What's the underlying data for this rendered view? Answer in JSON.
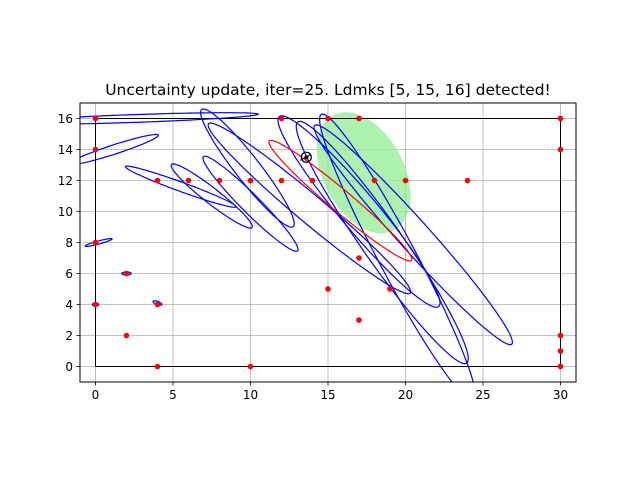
{
  "chart_data": {
    "type": "scatter",
    "title": "Uncertainty update, iter=25. Ldmks [5, 15, 16] detected!",
    "xlabel": "",
    "ylabel": "",
    "xlim": [
      -1,
      31
    ],
    "ylim": [
      -1,
      17
    ],
    "xticks": [
      0,
      5,
      10,
      15,
      20,
      25,
      30
    ],
    "yticks": [
      0,
      2,
      4,
      6,
      8,
      10,
      12,
      14,
      16
    ],
    "grid": true,
    "colors": {
      "landmark": "#ff0000",
      "ellipse": "#0000ff",
      "robot_cov": "#90ee90",
      "pose_ellipse": "#ff0000",
      "path": "#000000",
      "walls": "#000000",
      "grid": "#b0b0b0"
    },
    "walls": [
      [
        0,
        0
      ],
      [
        30,
        0
      ],
      [
        30,
        16
      ],
      [
        0,
        16
      ],
      [
        0,
        0
      ]
    ],
    "landmarks": [
      [
        0,
        4
      ],
      [
        0,
        8
      ],
      [
        0,
        14
      ],
      [
        0,
        16
      ],
      [
        2,
        2
      ],
      [
        2,
        6
      ],
      [
        4,
        0
      ],
      [
        4,
        4
      ],
      [
        4,
        12
      ],
      [
        6,
        12
      ],
      [
        8,
        12
      ],
      [
        10,
        0
      ],
      [
        10,
        12
      ],
      [
        12,
        12
      ],
      [
        12,
        16
      ],
      [
        14,
        12
      ],
      [
        15,
        16
      ],
      [
        15,
        5
      ],
      [
        17,
        16
      ],
      [
        17,
        7
      ],
      [
        17,
        3
      ],
      [
        18,
        12
      ],
      [
        19,
        5
      ],
      [
        20,
        12
      ],
      [
        24,
        12
      ],
      [
        30,
        0
      ],
      [
        30,
        1
      ],
      [
        30,
        2
      ],
      [
        30,
        14
      ],
      [
        30,
        16
      ]
    ],
    "landmark_ellipses": [
      {
        "cx": 0.0,
        "cy": 4.0,
        "rx": 0.2,
        "ry": 0.1,
        "angle": 0
      },
      {
        "cx": 0.2,
        "cy": 8.0,
        "rx": 0.9,
        "ry": 0.1,
        "angle": 15
      },
      {
        "cx": 2.0,
        "cy": 6.0,
        "rx": 0.3,
        "ry": 0.1,
        "angle": 0
      },
      {
        "cx": 4.0,
        "cy": 4.1,
        "rx": 0.3,
        "ry": 0.1,
        "angle": -20
      },
      {
        "cx": 2.5,
        "cy": 16.0,
        "rx": 8.0,
        "ry": 0.25,
        "angle": 2
      },
      {
        "cx": 1.2,
        "cy": 14.0,
        "rx": 3.0,
        "ry": 0.3,
        "angle": 18
      },
      {
        "cx": 5.5,
        "cy": 11.6,
        "rx": 3.8,
        "ry": 0.3,
        "angle": -20
      },
      {
        "cx": 7.5,
        "cy": 11.0,
        "rx": 3.3,
        "ry": 0.5,
        "angle": -38
      },
      {
        "cx": 10.0,
        "cy": 10.5,
        "rx": 4.3,
        "ry": 0.6,
        "angle": -45
      },
      {
        "cx": 9.8,
        "cy": 12.8,
        "rx": 4.8,
        "ry": 0.8,
        "angle": -52
      },
      {
        "cx": 13.8,
        "cy": 10.2,
        "rx": 8.5,
        "ry": 0.9,
        "angle": -40
      },
      {
        "cx": 17.0,
        "cy": 10.0,
        "rx": 8.0,
        "ry": 1.2,
        "angle": -50
      },
      {
        "cx": 18.5,
        "cy": 8.0,
        "rx": 9.5,
        "ry": 1.3,
        "angle": -55
      },
      {
        "cx": 19.5,
        "cy": 7.0,
        "rx": 10.5,
        "ry": 1.2,
        "angle": -62
      },
      {
        "cx": 20.5,
        "cy": 8.5,
        "rx": 9.5,
        "ry": 1.0,
        "angle": -48
      }
    ],
    "robot_covariance": {
      "cx": 17.3,
      "cy": 12.5,
      "rx": 4.2,
      "ry": 2.6,
      "angle": -62
    },
    "pose_ellipse": {
      "cx": 15.8,
      "cy": 10.7,
      "rx": 6.0,
      "ry": 0.7,
      "angle": -40
    },
    "robot_pose": {
      "x": 13.6,
      "y": 13.5
    },
    "path": [
      [
        13.2,
        13.3
      ],
      [
        13.6,
        13.5
      ],
      [
        13.9,
        13.7
      ]
    ]
  }
}
